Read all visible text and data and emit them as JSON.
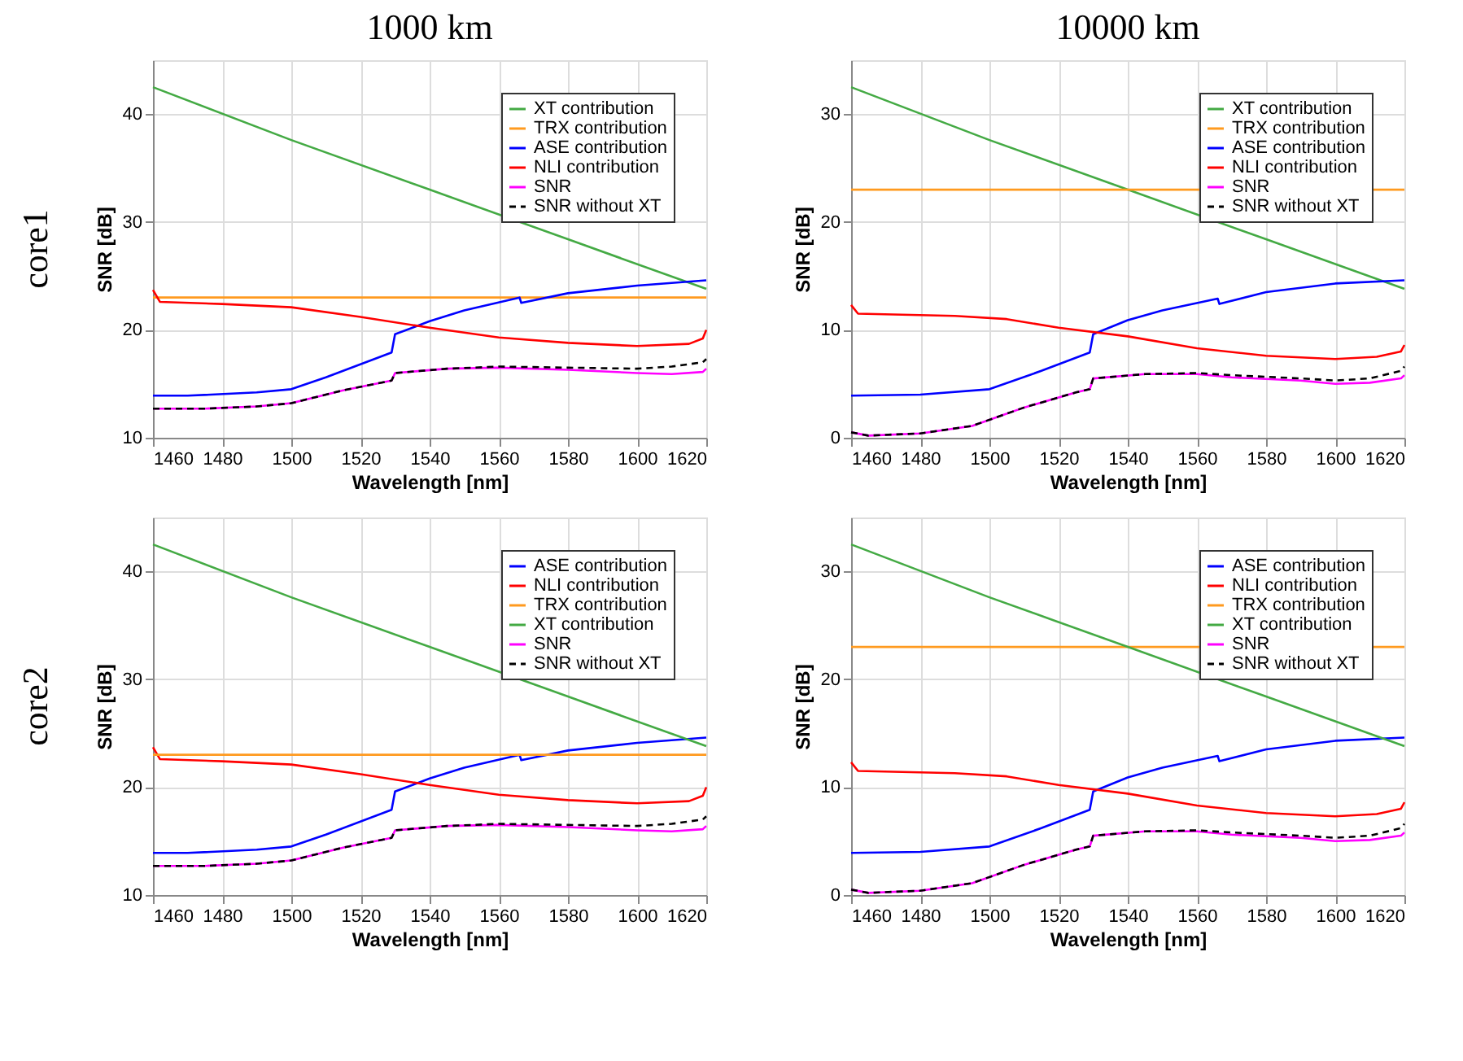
{
  "chart_data": [
    {
      "type": "line",
      "title": "1000 km",
      "annotations": [
        "core1"
      ],
      "xlabel": "Wavelength [nm]",
      "ylabel": "SNR [dB]",
      "xlim": [
        1460,
        1620
      ],
      "xticks": [
        1460,
        1480,
        1500,
        1520,
        1540,
        1560,
        1580,
        1600,
        1620
      ],
      "ylim": [
        10,
        45
      ],
      "yticks": [
        10,
        20,
        30,
        40
      ],
      "grid": true,
      "legend": "top right",
      "marker": "none",
      "series": [
        {
          "name": "XT contribution",
          "color": "#44aa44",
          "x": [
            1460,
            1500,
            1540,
            1580,
            1620
          ],
          "values": [
            42.5,
            37.6,
            33.0,
            28.4,
            23.8
          ]
        },
        {
          "name": "TRX contribution",
          "color": "#ff9a1f",
          "x": [
            1460,
            1620
          ],
          "values": [
            23.0,
            23.0
          ]
        },
        {
          "name": "ASE contribution",
          "color": "#0000ff",
          "x": [
            1460,
            1470,
            1490,
            1500,
            1510,
            1529,
            1530,
            1540,
            1550,
            1566,
            1566.5,
            1580,
            1600,
            1620
          ],
          "values": [
            13.9,
            13.9,
            14.2,
            14.5,
            15.6,
            17.9,
            19.6,
            20.8,
            21.8,
            23.0,
            22.5,
            23.4,
            24.1,
            24.6
          ]
        },
        {
          "name": "NLI contribution",
          "color": "#ff0000",
          "x": [
            1460,
            1462,
            1480,
            1500,
            1520,
            1540,
            1560,
            1580,
            1600,
            1615,
            1619,
            1620
          ],
          "values": [
            23.7,
            22.6,
            22.4,
            22.1,
            21.2,
            20.2,
            19.3,
            18.8,
            18.5,
            18.7,
            19.2,
            20.0
          ]
        },
        {
          "name": "SNR",
          "color": "#ff00ff",
          "x": [
            1460,
            1475,
            1490,
            1500,
            1515,
            1529,
            1530,
            1545,
            1560,
            1580,
            1600,
            1610,
            1619,
            1620
          ],
          "values": [
            12.7,
            12.7,
            12.9,
            13.2,
            14.4,
            15.3,
            16.0,
            16.4,
            16.5,
            16.3,
            16.0,
            15.9,
            16.1,
            16.4
          ]
        },
        {
          "name": "SNR without XT",
          "color": "#000000",
          "line_style": "dashed",
          "x": [
            1460,
            1475,
            1490,
            1500,
            1515,
            1529,
            1530,
            1545,
            1560,
            1580,
            1600,
            1610,
            1619,
            1620
          ],
          "values": [
            12.7,
            12.7,
            12.9,
            13.2,
            14.4,
            15.3,
            16.0,
            16.4,
            16.6,
            16.5,
            16.4,
            16.6,
            17.0,
            17.3
          ]
        }
      ]
    },
    {
      "type": "line",
      "title": "10000 km",
      "xlabel": "Wavelength [nm]",
      "ylabel": "SNR [dB]",
      "xlim": [
        1460,
        1620
      ],
      "xticks": [
        1460,
        1480,
        1500,
        1520,
        1540,
        1560,
        1580,
        1600,
        1620
      ],
      "ylim": [
        0,
        35
      ],
      "yticks": [
        0,
        10,
        20,
        30
      ],
      "grid": true,
      "legend": "top right",
      "marker": "none",
      "series": [
        {
          "name": "XT contribution",
          "color": "#44aa44",
          "x": [
            1460,
            1500,
            1540,
            1580,
            1620
          ],
          "values": [
            32.5,
            27.6,
            23.0,
            18.4,
            13.8
          ]
        },
        {
          "name": "TRX contribution",
          "color": "#ff9a1f",
          "x": [
            1460,
            1620
          ],
          "values": [
            23.0,
            23.0
          ]
        },
        {
          "name": "ASE contribution",
          "color": "#0000ff",
          "x": [
            1460,
            1480,
            1500,
            1515,
            1529,
            1530,
            1540,
            1550,
            1566,
            1566.5,
            1580,
            1600,
            1620
          ],
          "values": [
            3.9,
            4.0,
            4.5,
            6.2,
            7.9,
            9.6,
            10.9,
            11.8,
            12.9,
            12.4,
            13.5,
            14.3,
            14.6
          ]
        },
        {
          "name": "NLI contribution",
          "color": "#ff0000",
          "x": [
            1460,
            1462,
            1490,
            1505,
            1520,
            1540,
            1560,
            1580,
            1600,
            1612,
            1619,
            1620
          ],
          "values": [
            12.3,
            11.5,
            11.3,
            11.0,
            10.2,
            9.4,
            8.3,
            7.6,
            7.3,
            7.5,
            8.0,
            8.6
          ]
        },
        {
          "name": "SNR",
          "color": "#ff00ff",
          "x": [
            1460,
            1465,
            1480,
            1495,
            1510,
            1525,
            1529,
            1530,
            1545,
            1560,
            1570,
            1590,
            1600,
            1610,
            1619,
            1620
          ],
          "values": [
            0.5,
            0.2,
            0.4,
            1.1,
            2.8,
            4.2,
            4.5,
            5.5,
            5.9,
            5.9,
            5.6,
            5.3,
            5.0,
            5.1,
            5.5,
            5.8
          ]
        },
        {
          "name": "SNR without XT",
          "color": "#000000",
          "line_style": "dashed",
          "x": [
            1460,
            1465,
            1480,
            1495,
            1510,
            1525,
            1529,
            1530,
            1545,
            1560,
            1570,
            1590,
            1600,
            1610,
            1619,
            1620
          ],
          "values": [
            0.5,
            0.2,
            0.4,
            1.1,
            2.8,
            4.2,
            4.5,
            5.5,
            5.9,
            6.0,
            5.8,
            5.5,
            5.3,
            5.5,
            6.2,
            6.6
          ]
        }
      ]
    },
    {
      "type": "line",
      "annotations": [
        "core2"
      ],
      "xlabel": "Wavelength [nm]",
      "ylabel": "SNR [dB]",
      "xlim": [
        1460,
        1620
      ],
      "xticks": [
        1460,
        1480,
        1500,
        1520,
        1540,
        1560,
        1580,
        1600,
        1620
      ],
      "ylim": [
        10,
        45
      ],
      "yticks": [
        10,
        20,
        30,
        40
      ],
      "grid": true,
      "legend": "top right",
      "marker": "none",
      "series": [
        {
          "name": "ASE contribution",
          "color": "#0000ff",
          "x": [
            1460,
            1470,
            1490,
            1500,
            1510,
            1529,
            1530,
            1540,
            1550,
            1566,
            1566.5,
            1580,
            1600,
            1620
          ],
          "values": [
            13.9,
            13.9,
            14.2,
            14.5,
            15.6,
            17.9,
            19.6,
            20.8,
            21.8,
            23.0,
            22.5,
            23.4,
            24.1,
            24.6
          ]
        },
        {
          "name": "NLI contribution",
          "color": "#ff0000",
          "x": [
            1460,
            1462,
            1480,
            1500,
            1520,
            1540,
            1560,
            1580,
            1600,
            1615,
            1619,
            1620
          ],
          "values": [
            23.7,
            22.6,
            22.4,
            22.1,
            21.2,
            20.2,
            19.3,
            18.8,
            18.5,
            18.7,
            19.2,
            20.0
          ]
        },
        {
          "name": "TRX contribution",
          "color": "#ff9a1f",
          "x": [
            1460,
            1620
          ],
          "values": [
            23.0,
            23.0
          ]
        },
        {
          "name": "XT contribution",
          "color": "#44aa44",
          "x": [
            1460,
            1500,
            1540,
            1580,
            1620
          ],
          "values": [
            42.5,
            37.6,
            33.0,
            28.4,
            23.8
          ]
        },
        {
          "name": "SNR",
          "color": "#ff00ff",
          "x": [
            1460,
            1475,
            1490,
            1500,
            1515,
            1529,
            1530,
            1545,
            1560,
            1580,
            1600,
            1610,
            1619,
            1620
          ],
          "values": [
            12.7,
            12.7,
            12.9,
            13.2,
            14.4,
            15.3,
            16.0,
            16.4,
            16.5,
            16.3,
            16.0,
            15.9,
            16.1,
            16.4
          ]
        },
        {
          "name": "SNR without XT",
          "color": "#000000",
          "line_style": "dashed",
          "x": [
            1460,
            1475,
            1490,
            1500,
            1515,
            1529,
            1530,
            1545,
            1560,
            1580,
            1600,
            1610,
            1619,
            1620
          ],
          "values": [
            12.7,
            12.7,
            12.9,
            13.2,
            14.4,
            15.3,
            16.0,
            16.4,
            16.6,
            16.5,
            16.4,
            16.6,
            17.0,
            17.3
          ]
        }
      ]
    },
    {
      "type": "line",
      "xlabel": "Wavelength [nm]",
      "ylabel": "SNR [dB]",
      "xlim": [
        1460,
        1620
      ],
      "xticks": [
        1460,
        1480,
        1500,
        1520,
        1540,
        1560,
        1580,
        1600,
        1620
      ],
      "ylim": [
        0,
        35
      ],
      "yticks": [
        0,
        10,
        20,
        30
      ],
      "grid": true,
      "legend": "top right",
      "marker": "none",
      "series": [
        {
          "name": "ASE contribution",
          "color": "#0000ff",
          "x": [
            1460,
            1480,
            1500,
            1515,
            1529,
            1530,
            1540,
            1550,
            1566,
            1566.5,
            1580,
            1600,
            1620
          ],
          "values": [
            3.9,
            4.0,
            4.5,
            6.2,
            7.9,
            9.6,
            10.9,
            11.8,
            12.9,
            12.4,
            13.5,
            14.3,
            14.6
          ]
        },
        {
          "name": "NLI contribution",
          "color": "#ff0000",
          "x": [
            1460,
            1462,
            1490,
            1505,
            1520,
            1540,
            1560,
            1580,
            1600,
            1612,
            1619,
            1620
          ],
          "values": [
            12.3,
            11.5,
            11.3,
            11.0,
            10.2,
            9.4,
            8.3,
            7.6,
            7.3,
            7.5,
            8.0,
            8.6
          ]
        },
        {
          "name": "TRX contribution",
          "color": "#ff9a1f",
          "x": [
            1460,
            1620
          ],
          "values": [
            23.0,
            23.0
          ]
        },
        {
          "name": "XT contribution",
          "color": "#44aa44",
          "x": [
            1460,
            1500,
            1540,
            1580,
            1620
          ],
          "values": [
            32.5,
            27.6,
            23.0,
            18.4,
            13.8
          ]
        },
        {
          "name": "SNR",
          "color": "#ff00ff",
          "x": [
            1460,
            1465,
            1480,
            1495,
            1510,
            1525,
            1529,
            1530,
            1545,
            1560,
            1570,
            1590,
            1600,
            1610,
            1619,
            1620
          ],
          "values": [
            0.5,
            0.2,
            0.4,
            1.1,
            2.8,
            4.2,
            4.5,
            5.5,
            5.9,
            5.9,
            5.6,
            5.3,
            5.0,
            5.1,
            5.5,
            5.8
          ]
        },
        {
          "name": "SNR without XT",
          "color": "#000000",
          "line_style": "dashed",
          "x": [
            1460,
            1465,
            1480,
            1495,
            1510,
            1525,
            1529,
            1530,
            1545,
            1560,
            1570,
            1590,
            1600,
            1610,
            1619,
            1620
          ],
          "values": [
            0.5,
            0.2,
            0.4,
            1.1,
            2.8,
            4.2,
            4.5,
            5.5,
            5.9,
            6.0,
            5.8,
            5.5,
            5.3,
            5.5,
            6.2,
            6.6
          ]
        }
      ]
    }
  ]
}
